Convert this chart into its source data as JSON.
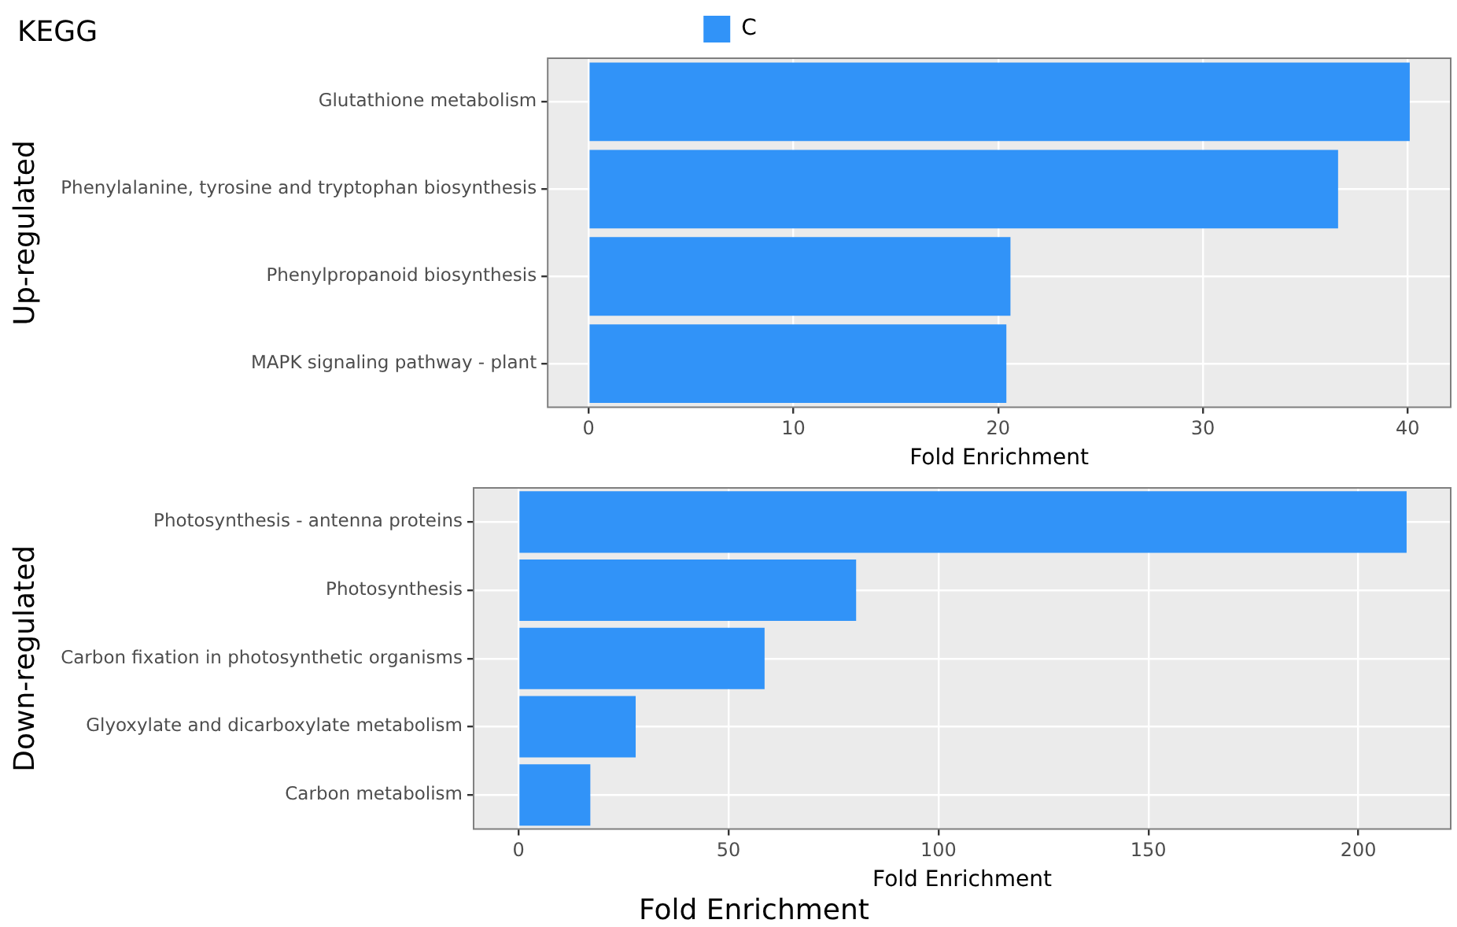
{
  "chart_data": [
    {
      "type": "bar",
      "orientation": "horizontal",
      "title": "KEGG",
      "ylabel": "Up-regulated",
      "xlabel": "Fold Enrichment",
      "categories": [
        "Glutathione metabolism",
        "Phenylalanine, tyrosine and tryptophan biosynthesis",
        "Phenylpropanoid biosynthesis",
        "MAPK signaling pathway - plant"
      ],
      "series": [
        {
          "name": "C",
          "color": "#3193f8",
          "values": [
            40.1,
            36.6,
            20.6,
            20.4
          ]
        }
      ],
      "xlim": [
        -2,
        42.1
      ],
      "xticks": [
        0,
        10,
        20,
        30,
        40
      ],
      "grid": true,
      "legend": "top"
    },
    {
      "type": "bar",
      "orientation": "horizontal",
      "ylabel": "Down-regulated",
      "xlabel": "Fold Enrichment",
      "categories": [
        "Photosynthesis - antenna proteins",
        "Photosynthesis",
        "Carbon fixation in photosynthetic organisms",
        "Glyoxylate and dicarboxylate metabolism",
        "Carbon metabolism"
      ],
      "series": [
        {
          "color": "#3193f8",
          "values": [
            211.5,
            80.4,
            58.6,
            27.9,
            17.1
          ]
        }
      ],
      "xlim": [
        -10.7,
        222
      ],
      "xticks": [
        0,
        50,
        100,
        150,
        200
      ],
      "grid": true,
      "annotations": [
        "Fold Enrichment"
      ]
    }
  ]
}
